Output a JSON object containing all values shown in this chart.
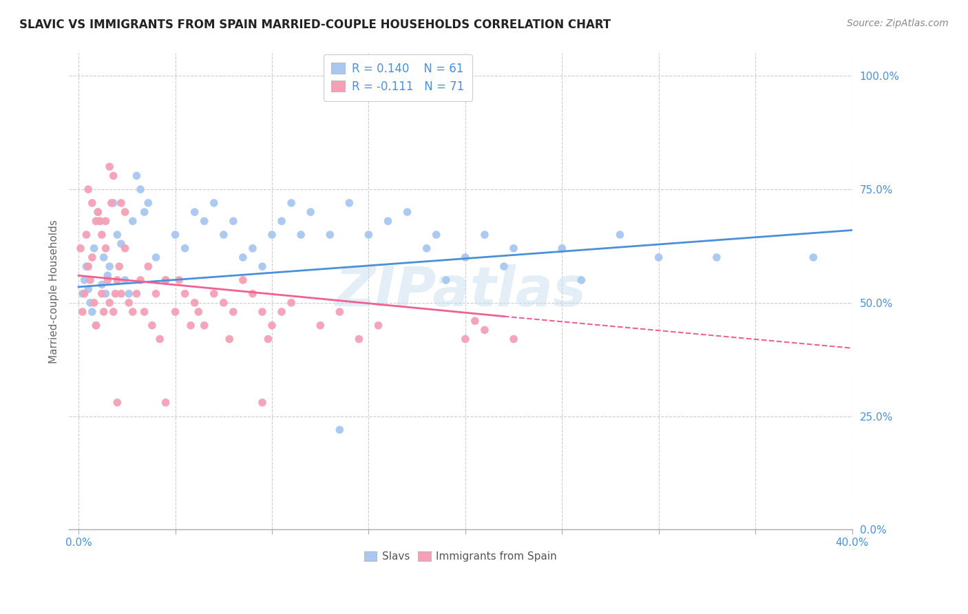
{
  "title": "SLAVIC VS IMMIGRANTS FROM SPAIN MARRIED-COUPLE HOUSEHOLDS CORRELATION CHART",
  "source": "Source: ZipAtlas.com",
  "ylabel": "Married-couple Households",
  "ytick_vals": [
    0,
    25,
    50,
    75,
    100
  ],
  "xtick_vals": [
    0,
    5,
    10,
    15,
    20,
    25,
    30,
    35,
    40
  ],
  "xlim": [
    -0.5,
    40
  ],
  "ylim": [
    0,
    105
  ],
  "watermark": "ZIPatlas",
  "legend_slavs_R": "0.140",
  "legend_slavs_N": "61",
  "legend_spain_R": "-0.111",
  "legend_spain_N": "71",
  "slavs_color": "#a8c8f0",
  "spain_color": "#f5a0b5",
  "slavs_line_color": "#4a90d9",
  "spain_line_color": "#f06090",
  "background_color": "#ffffff",
  "grid_color": "#cccccc",
  "tick_color": "#4a90d9",
  "ylabel_color": "#666666",
  "slavs_scatter": [
    [
      0.2,
      52
    ],
    [
      0.3,
      55
    ],
    [
      0.4,
      58
    ],
    [
      0.5,
      53
    ],
    [
      0.6,
      50
    ],
    [
      0.7,
      48
    ],
    [
      0.8,
      62
    ],
    [
      0.9,
      45
    ],
    [
      1.0,
      70
    ],
    [
      1.1,
      68
    ],
    [
      1.2,
      54
    ],
    [
      1.3,
      60
    ],
    [
      1.4,
      52
    ],
    [
      1.5,
      56
    ],
    [
      1.6,
      58
    ],
    [
      1.8,
      72
    ],
    [
      2.0,
      65
    ],
    [
      2.2,
      63
    ],
    [
      2.4,
      55
    ],
    [
      2.6,
      52
    ],
    [
      2.8,
      68
    ],
    [
      3.0,
      78
    ],
    [
      3.2,
      75
    ],
    [
      3.4,
      70
    ],
    [
      3.6,
      72
    ],
    [
      4.0,
      60
    ],
    [
      4.5,
      55
    ],
    [
      5.0,
      65
    ],
    [
      5.5,
      62
    ],
    [
      6.0,
      70
    ],
    [
      6.5,
      68
    ],
    [
      7.0,
      72
    ],
    [
      7.5,
      65
    ],
    [
      8.0,
      68
    ],
    [
      8.5,
      60
    ],
    [
      9.0,
      62
    ],
    [
      9.5,
      58
    ],
    [
      10.0,
      65
    ],
    [
      10.5,
      68
    ],
    [
      11.0,
      72
    ],
    [
      11.5,
      65
    ],
    [
      12.0,
      70
    ],
    [
      13.0,
      65
    ],
    [
      14.0,
      72
    ],
    [
      15.0,
      65
    ],
    [
      16.0,
      68
    ],
    [
      17.0,
      70
    ],
    [
      18.0,
      62
    ],
    [
      18.5,
      65
    ],
    [
      19.0,
      55
    ],
    [
      20.0,
      60
    ],
    [
      21.0,
      65
    ],
    [
      22.0,
      58
    ],
    [
      22.5,
      62
    ],
    [
      25.0,
      62
    ],
    [
      26.0,
      55
    ],
    [
      28.0,
      65
    ],
    [
      30.0,
      60
    ],
    [
      33.0,
      60
    ],
    [
      38.0,
      60
    ],
    [
      13.5,
      22
    ]
  ],
  "spain_scatter": [
    [
      0.1,
      62
    ],
    [
      0.2,
      48
    ],
    [
      0.3,
      52
    ],
    [
      0.4,
      65
    ],
    [
      0.5,
      58
    ],
    [
      0.6,
      55
    ],
    [
      0.7,
      60
    ],
    [
      0.8,
      50
    ],
    [
      0.9,
      45
    ],
    [
      1.0,
      70
    ],
    [
      1.1,
      68
    ],
    [
      1.2,
      52
    ],
    [
      1.3,
      48
    ],
    [
      1.4,
      62
    ],
    [
      1.5,
      55
    ],
    [
      1.6,
      50
    ],
    [
      1.7,
      72
    ],
    [
      1.8,
      48
    ],
    [
      1.9,
      52
    ],
    [
      2.0,
      55
    ],
    [
      2.1,
      58
    ],
    [
      2.2,
      52
    ],
    [
      2.4,
      62
    ],
    [
      2.6,
      50
    ],
    [
      2.8,
      48
    ],
    [
      3.0,
      52
    ],
    [
      3.2,
      55
    ],
    [
      3.4,
      48
    ],
    [
      3.6,
      58
    ],
    [
      3.8,
      45
    ],
    [
      4.0,
      52
    ],
    [
      4.5,
      55
    ],
    [
      5.0,
      48
    ],
    [
      5.5,
      52
    ],
    [
      6.0,
      50
    ],
    [
      6.5,
      45
    ],
    [
      7.0,
      52
    ],
    [
      7.5,
      50
    ],
    [
      8.0,
      48
    ],
    [
      8.5,
      55
    ],
    [
      9.0,
      52
    ],
    [
      9.5,
      48
    ],
    [
      10.0,
      45
    ],
    [
      10.5,
      48
    ],
    [
      11.0,
      50
    ],
    [
      1.6,
      80
    ],
    [
      1.8,
      78
    ],
    [
      2.2,
      72
    ],
    [
      2.4,
      70
    ],
    [
      0.5,
      75
    ],
    [
      0.7,
      72
    ],
    [
      0.9,
      68
    ],
    [
      1.2,
      65
    ],
    [
      1.4,
      68
    ],
    [
      4.2,
      42
    ],
    [
      5.2,
      55
    ],
    [
      5.8,
      45
    ],
    [
      6.2,
      48
    ],
    [
      7.8,
      42
    ],
    [
      9.8,
      42
    ],
    [
      12.5,
      45
    ],
    [
      13.5,
      48
    ],
    [
      14.5,
      42
    ],
    [
      15.5,
      45
    ],
    [
      20.5,
      46
    ],
    [
      20.0,
      42
    ],
    [
      21.0,
      44
    ],
    [
      2.0,
      28
    ],
    [
      4.5,
      28
    ],
    [
      9.5,
      28
    ],
    [
      22.5,
      42
    ]
  ],
  "slavs_trend_x0": 0,
  "slavs_trend_y0": 53.5,
  "slavs_trend_x1": 40,
  "slavs_trend_y1": 66,
  "spain_trend_x0": 0,
  "spain_trend_y0": 56,
  "spain_trend_x1": 22,
  "spain_trend_y1": 47,
  "spain_dash_x1": 40,
  "spain_dash_y1": 40
}
